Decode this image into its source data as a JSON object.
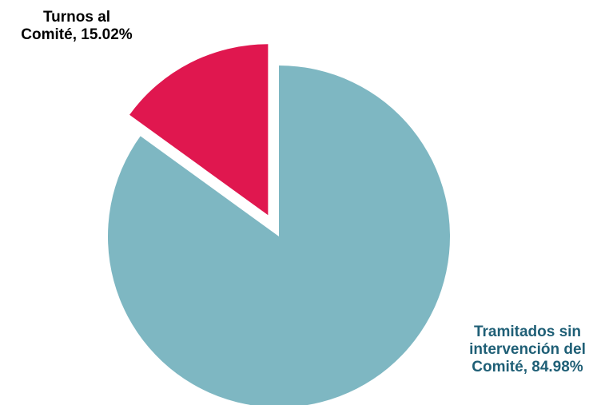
{
  "chart_data": {
    "type": "pie",
    "title": "",
    "legend": "none",
    "slices": [
      {
        "label_lines": [
          "Turnos al",
          "Comité, 15.02%"
        ],
        "value": 15.02,
        "color": "#e0174f",
        "text_color": "#000000",
        "exploded": true
      },
      {
        "label_lines": [
          "Tramitados sin",
          "intervención del",
          "Comité, 84.98%"
        ],
        "value": 84.98,
        "color": "#7eb7c2",
        "text_color": "#1f5f76",
        "exploded": false
      }
    ]
  }
}
